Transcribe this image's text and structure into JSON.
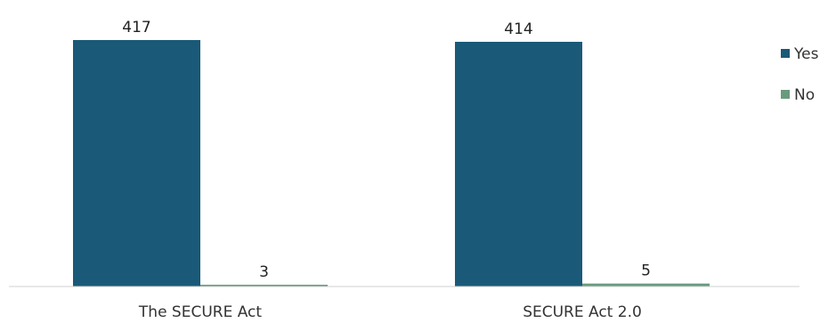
{
  "chart_data": {
    "type": "bar",
    "categories": [
      "The SECURE Act",
      "SECURE Act 2.0"
    ],
    "series": [
      {
        "name": "Yes",
        "values": [
          417,
          414
        ],
        "color": "#1a5a78"
      },
      {
        "name": "No",
        "values": [
          3,
          5
        ],
        "color": "#6a9a7e"
      }
    ],
    "title": "",
    "xlabel": "",
    "ylabel": "",
    "ylim": [
      0,
      420
    ],
    "grid": false,
    "legend_position": "right",
    "data_labels": true
  }
}
